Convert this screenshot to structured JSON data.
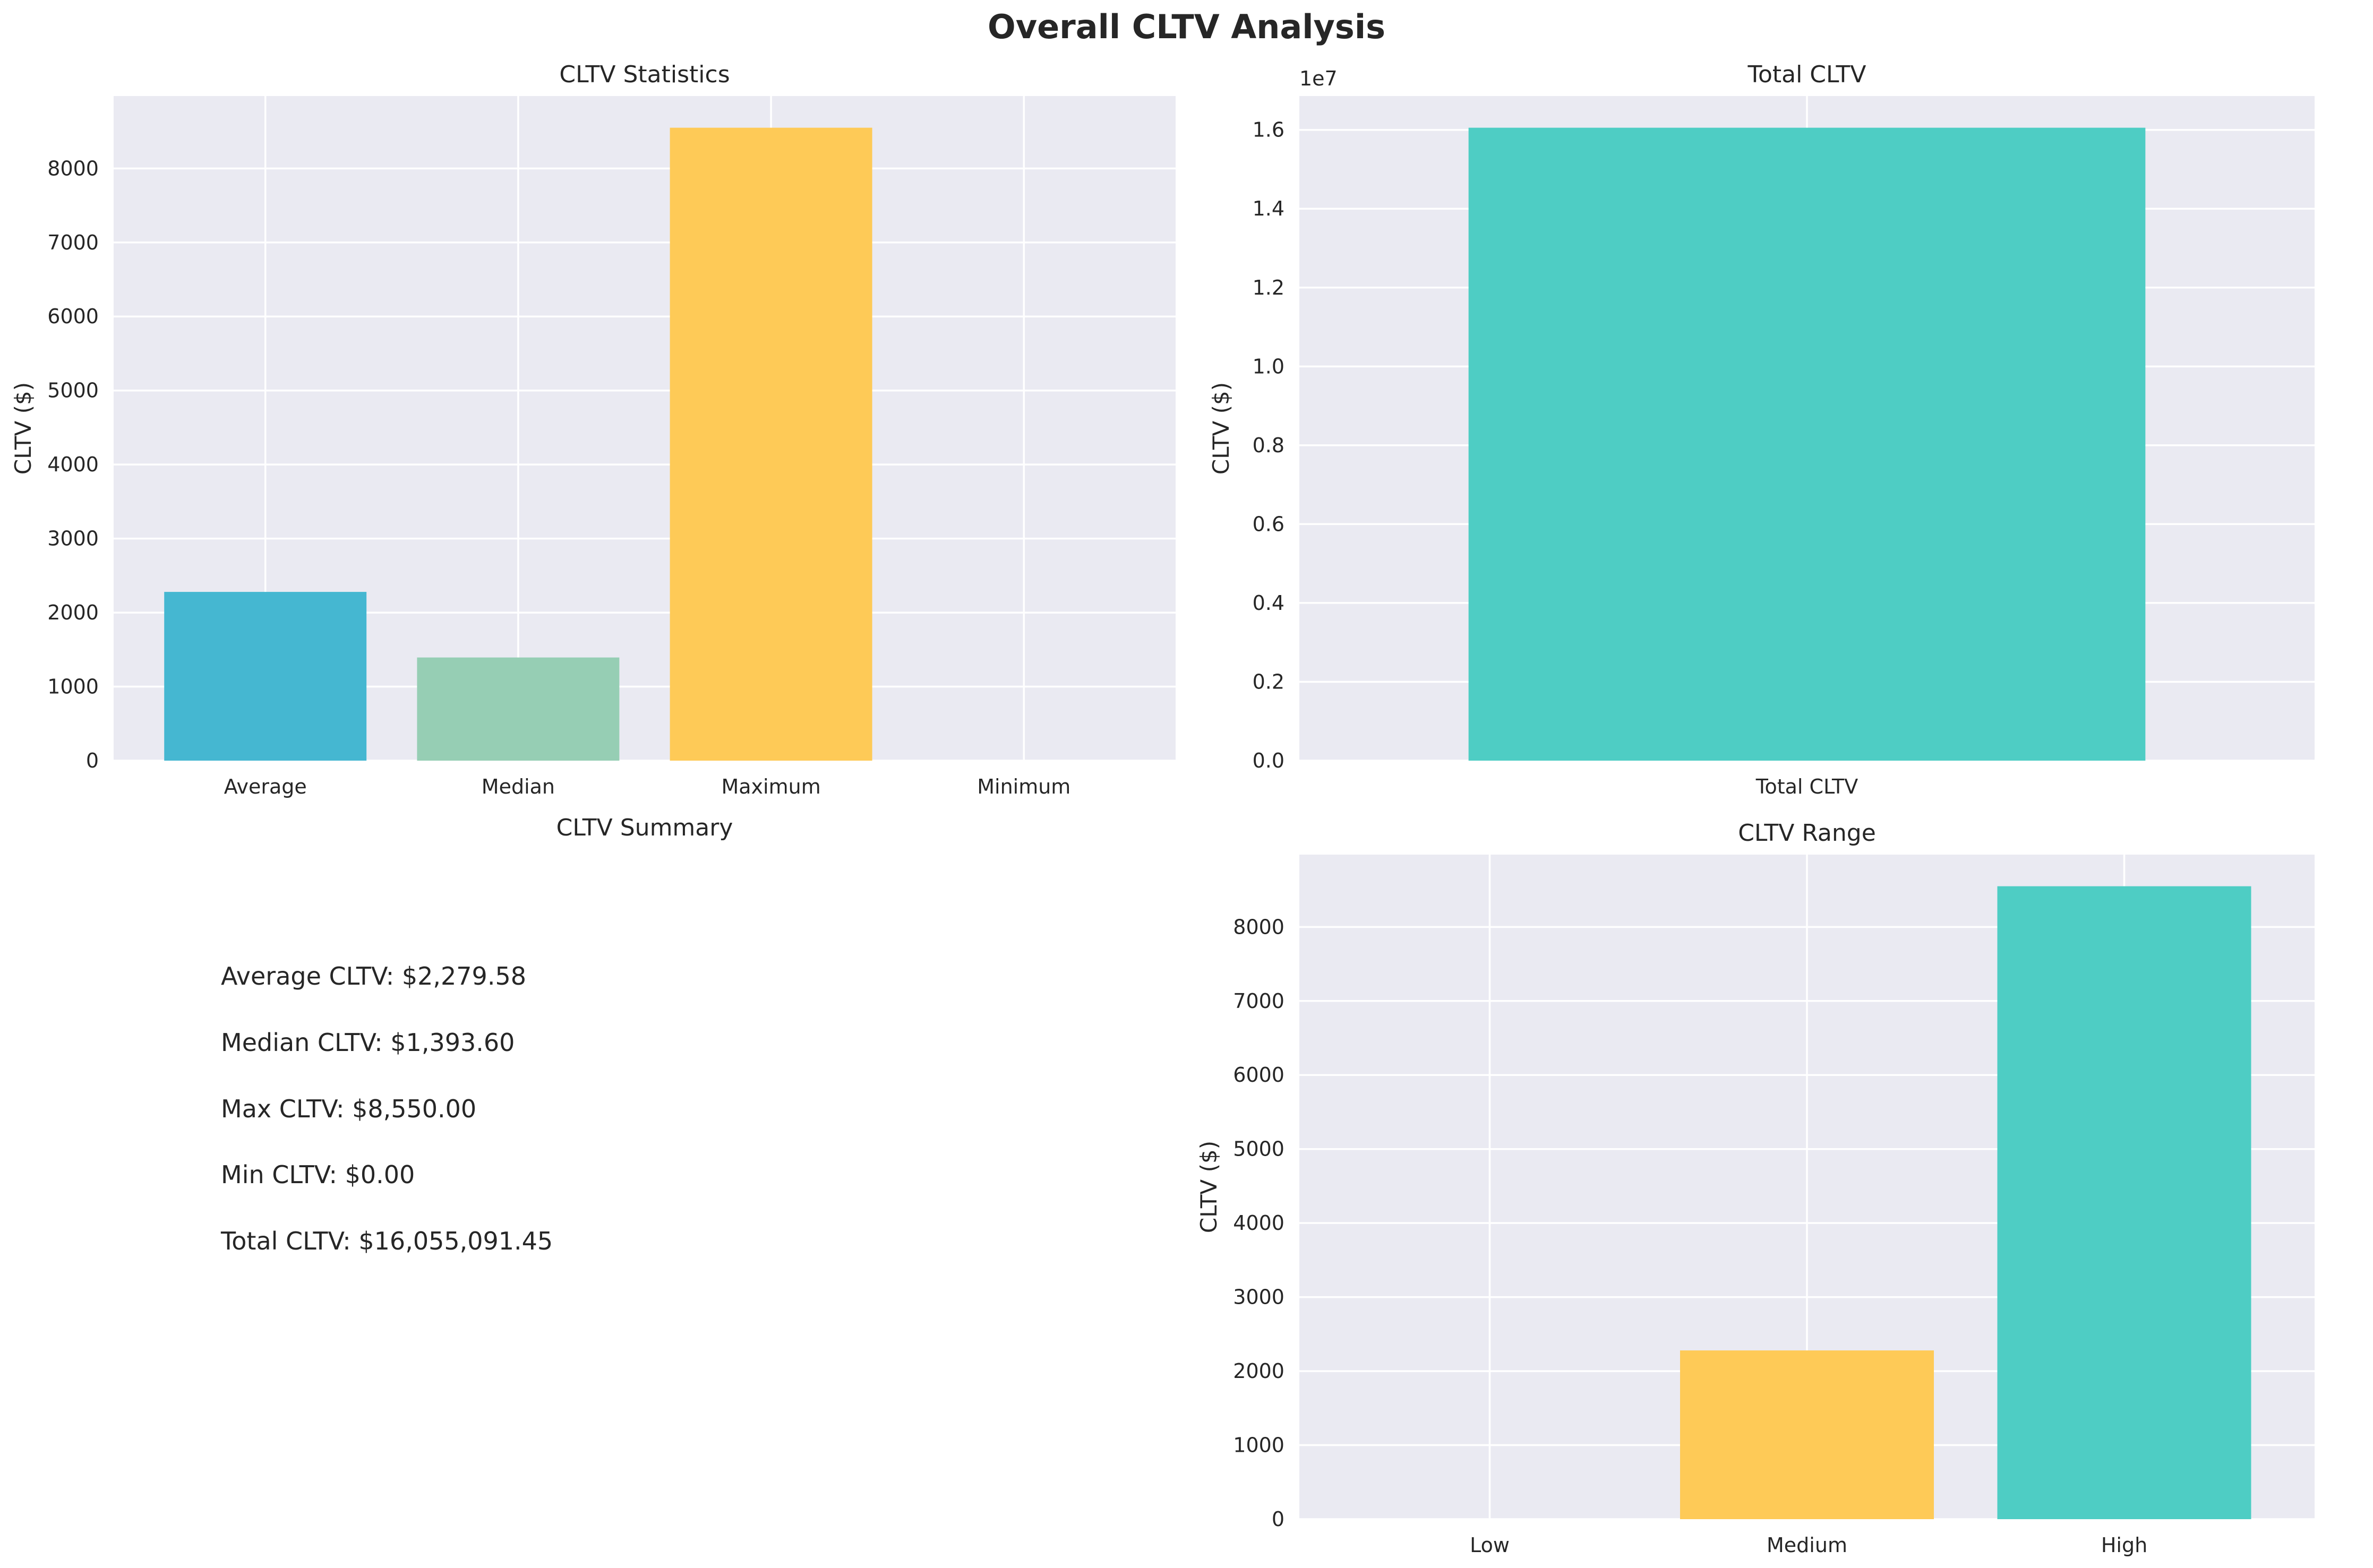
{
  "figure": {
    "title": "Overall CLTV Analysis"
  },
  "summary": {
    "title": "CLTV Summary",
    "lines": [
      "Average CLTV: $2,279.58",
      "Median CLTV: $1,393.60",
      "Max CLTV: $8,550.00",
      "Min CLTV: $0.00",
      "Total CLTV: $16,055,091.45"
    ]
  },
  "chart_data": [
    {
      "id": "stats",
      "type": "bar",
      "title": "CLTV Statistics",
      "xlabel": "",
      "ylabel": "CLTV ($)",
      "categories": [
        "Average",
        "Median",
        "Maximum",
        "Minimum"
      ],
      "values": [
        2279.58,
        1393.6,
        8550.0,
        0.0
      ],
      "colors": [
        "#45B7D1",
        "#96CEB4",
        "#FECA57",
        "#FF6B6B"
      ],
      "ylim": [
        0,
        8977.5
      ],
      "yticks": [
        0,
        1000,
        2000,
        3000,
        4000,
        5000,
        6000,
        7000,
        8000
      ],
      "ytick_labels": [
        "0",
        "1000",
        "2000",
        "3000",
        "4000",
        "5000",
        "6000",
        "7000",
        "8000"
      ],
      "grid": true
    },
    {
      "id": "total",
      "type": "bar",
      "title": "Total CLTV",
      "xlabel": "",
      "ylabel": "CLTV ($)",
      "categories": [
        "Total CLTV"
      ],
      "values": [
        16055091.45
      ],
      "colors": [
        "#4ECDC4"
      ],
      "ylim": [
        0,
        16857846.0
      ],
      "yticks": [
        0,
        2000000,
        4000000,
        6000000,
        8000000,
        10000000,
        12000000,
        14000000,
        16000000
      ],
      "ytick_labels": [
        "0.0",
        "0.2",
        "0.4",
        "0.6",
        "0.8",
        "1.0",
        "1.2",
        "1.4",
        "1.6"
      ],
      "offset_label": "1e7",
      "grid": true
    },
    {
      "id": "range",
      "type": "bar",
      "title": "CLTV Range",
      "xlabel": "",
      "ylabel": "CLTV ($)",
      "categories": [
        "Low",
        "Medium",
        "High"
      ],
      "values": [
        0.0,
        2279.58,
        8550.0
      ],
      "colors": [
        "#FF6B6B",
        "#FECA57",
        "#4ECDC4"
      ],
      "ylim": [
        0,
        8977.5
      ],
      "yticks": [
        0,
        1000,
        2000,
        3000,
        4000,
        5000,
        6000,
        7000,
        8000
      ],
      "ytick_labels": [
        "0",
        "1000",
        "2000",
        "3000",
        "4000",
        "5000",
        "6000",
        "7000",
        "8000"
      ],
      "grid": true
    }
  ]
}
